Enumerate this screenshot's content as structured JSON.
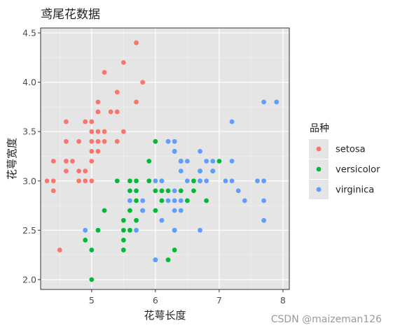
{
  "chart_data": {
    "type": "scatter",
    "title": "鸢尾花数据",
    "xlabel": "花萼长度",
    "ylabel": "花萼宽度",
    "xlim": [
      4.2,
      8.1
    ],
    "ylim": [
      1.9,
      4.55
    ],
    "x_ticks": [
      5,
      6,
      7,
      8
    ],
    "y_ticks": [
      2.0,
      2.5,
      3.0,
      3.5,
      4.0,
      4.5
    ],
    "grid": true,
    "legend": {
      "title": "品种",
      "position": "right"
    },
    "series": [
      {
        "name": "setosa",
        "color": "#F8766D",
        "points": [
          [
            4.3,
            3.0
          ],
          [
            4.4,
            2.9
          ],
          [
            4.4,
            3.0
          ],
          [
            4.4,
            3.2
          ],
          [
            4.5,
            2.3
          ],
          [
            4.6,
            3.1
          ],
          [
            4.6,
            3.2
          ],
          [
            4.6,
            3.4
          ],
          [
            4.6,
            3.6
          ],
          [
            4.7,
            3.2
          ],
          [
            4.8,
            3.0
          ],
          [
            4.8,
            3.1
          ],
          [
            4.8,
            3.4
          ],
          [
            4.9,
            3.0
          ],
          [
            4.9,
            3.1
          ],
          [
            4.9,
            3.6
          ],
          [
            5.0,
            3.0
          ],
          [
            5.0,
            3.2
          ],
          [
            5.0,
            3.3
          ],
          [
            5.0,
            3.4
          ],
          [
            5.0,
            3.5
          ],
          [
            5.0,
            3.6
          ],
          [
            5.1,
            3.3
          ],
          [
            5.1,
            3.4
          ],
          [
            5.1,
            3.5
          ],
          [
            5.1,
            3.7
          ],
          [
            5.1,
            3.8
          ],
          [
            5.2,
            3.4
          ],
          [
            5.2,
            3.5
          ],
          [
            5.2,
            4.1
          ],
          [
            5.3,
            3.7
          ],
          [
            5.4,
            3.4
          ],
          [
            5.4,
            3.7
          ],
          [
            5.4,
            3.9
          ],
          [
            5.5,
            3.5
          ],
          [
            5.5,
            4.2
          ],
          [
            5.7,
            3.8
          ],
          [
            5.7,
            4.4
          ],
          [
            5.8,
            4.0
          ]
        ]
      },
      {
        "name": "versicolor",
        "color": "#00BA38",
        "points": [
          [
            4.9,
            2.4
          ],
          [
            5.0,
            2.0
          ],
          [
            5.0,
            2.3
          ],
          [
            5.1,
            2.5
          ],
          [
            5.2,
            2.7
          ],
          [
            5.4,
            3.0
          ],
          [
            5.5,
            2.3
          ],
          [
            5.5,
            2.4
          ],
          [
            5.5,
            2.5
          ],
          [
            5.5,
            2.6
          ],
          [
            5.6,
            2.5
          ],
          [
            5.6,
            2.7
          ],
          [
            5.6,
            2.9
          ],
          [
            5.6,
            3.0
          ],
          [
            5.7,
            2.6
          ],
          [
            5.7,
            2.8
          ],
          [
            5.7,
            2.9
          ],
          [
            5.7,
            3.0
          ],
          [
            5.8,
            2.7
          ],
          [
            5.9,
            3.0
          ],
          [
            5.9,
            3.2
          ],
          [
            6.0,
            2.2
          ],
          [
            6.0,
            2.7
          ],
          [
            6.0,
            2.9
          ],
          [
            6.0,
            3.4
          ],
          [
            6.1,
            2.8
          ],
          [
            6.1,
            2.9
          ],
          [
            6.1,
            3.0
          ],
          [
            6.2,
            2.2
          ],
          [
            6.2,
            2.9
          ],
          [
            6.3,
            2.3
          ],
          [
            6.3,
            2.5
          ],
          [
            6.3,
            3.3
          ],
          [
            6.4,
            2.9
          ],
          [
            6.4,
            3.2
          ],
          [
            6.5,
            2.8
          ],
          [
            6.6,
            2.9
          ],
          [
            6.6,
            3.0
          ],
          [
            6.7,
            3.0
          ],
          [
            6.7,
            3.1
          ],
          [
            6.8,
            2.8
          ],
          [
            6.9,
            3.1
          ],
          [
            7.0,
            3.2
          ]
        ]
      },
      {
        "name": "virginica",
        "color": "#619CFF",
        "points": [
          [
            4.9,
            2.5
          ],
          [
            5.6,
            2.8
          ],
          [
            5.7,
            2.5
          ],
          [
            5.8,
            2.7
          ],
          [
            5.8,
            2.8
          ],
          [
            6.0,
            2.2
          ],
          [
            6.0,
            3.0
          ],
          [
            6.1,
            2.6
          ],
          [
            6.1,
            3.0
          ],
          [
            6.2,
            2.8
          ],
          [
            6.2,
            3.4
          ],
          [
            6.3,
            2.5
          ],
          [
            6.3,
            2.7
          ],
          [
            6.3,
            2.8
          ],
          [
            6.3,
            2.9
          ],
          [
            6.3,
            3.3
          ],
          [
            6.3,
            3.4
          ],
          [
            6.4,
            2.7
          ],
          [
            6.4,
            2.8
          ],
          [
            6.4,
            3.1
          ],
          [
            6.4,
            3.2
          ],
          [
            6.5,
            3.0
          ],
          [
            6.5,
            3.2
          ],
          [
            6.7,
            2.5
          ],
          [
            6.7,
            3.0
          ],
          [
            6.7,
            3.1
          ],
          [
            6.7,
            3.3
          ],
          [
            6.8,
            3.0
          ],
          [
            6.8,
            3.2
          ],
          [
            6.9,
            3.1
          ],
          [
            6.9,
            3.2
          ],
          [
            7.1,
            3.0
          ],
          [
            7.2,
            3.0
          ],
          [
            7.2,
            3.2
          ],
          [
            7.2,
            3.6
          ],
          [
            7.3,
            2.9
          ],
          [
            7.4,
            2.8
          ],
          [
            7.6,
            3.0
          ],
          [
            7.7,
            2.6
          ],
          [
            7.7,
            2.8
          ],
          [
            7.7,
            3.0
          ],
          [
            7.7,
            3.8
          ],
          [
            7.9,
            3.8
          ]
        ]
      }
    ]
  },
  "watermark": "CSDN @maizeman126"
}
